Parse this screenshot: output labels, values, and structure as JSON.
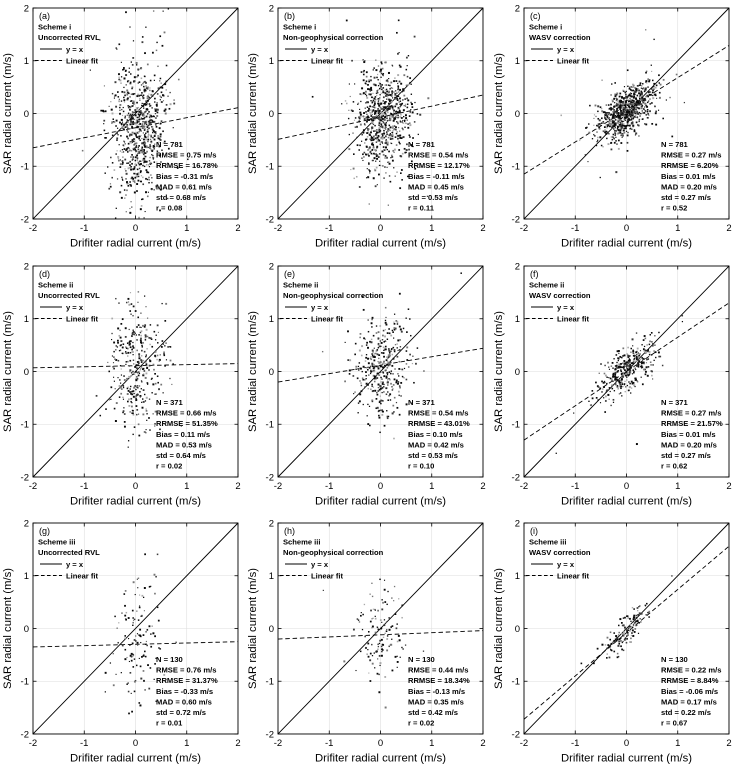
{
  "figure": {
    "background": "#ffffff",
    "axis_color": "#000000",
    "grid_color": "#dedede",
    "text_color": "#000000",
    "xlabel": "Drifiter radial current (m/s)",
    "ylabel": "SAR radial current (m/s)",
    "xlim": [
      -2,
      2
    ],
    "ylim": [
      -2,
      2
    ],
    "ticks": [
      -2,
      -1,
      0,
      1,
      2
    ],
    "legend": {
      "identity_label": "y = x",
      "fit_label": "Linear fit",
      "identity_style": "solid",
      "fit_style": "dashed",
      "position": "top-left-inside"
    }
  },
  "chart_data": [
    {
      "type": "scatter",
      "panel": "(a)",
      "scheme": "Scheme i",
      "correction": "Uncorrected RVL",
      "n_points": 781,
      "fit_line": {
        "slope": 0.19,
        "intercept": -0.27
      },
      "cloud": {
        "cx": 0.05,
        "cy": -0.3,
        "sx": 0.27,
        "sy": 0.66,
        "r": 0.08
      },
      "stats": [
        "N = 781",
        "RMSE = 0.75 m/s",
        "RRMSE = 16.78%",
        "Bias = -0.31 m/s",
        "MAD = 0.61 m/s",
        "std = 0.68 m/s",
        "r = 0.08"
      ]
    },
    {
      "type": "scatter",
      "panel": "(b)",
      "scheme": "Scheme i",
      "correction": "Non-geophysical correction",
      "n_points": 781,
      "fit_line": {
        "slope": 0.21,
        "intercept": -0.07
      },
      "cloud": {
        "cx": 0.05,
        "cy": -0.1,
        "sx": 0.27,
        "sy": 0.52,
        "r": 0.11
      },
      "stats": [
        "N = 781",
        "RMSE = 0.54 m/s",
        "RRMSE = 12.17%",
        "Bias = -0.11 m/s",
        "MAD = 0.45 m/s",
        "std = 0.53 m/s",
        "r = 0.11"
      ]
    },
    {
      "type": "scatter",
      "panel": "(c)",
      "scheme": "Scheme i",
      "correction": "WASV correction",
      "n_points": 781,
      "fit_line": {
        "slope": 0.61,
        "intercept": 0.07
      },
      "cloud": {
        "cx": 0.0,
        "cy": 0.05,
        "sx": 0.27,
        "sy": 0.27,
        "r": 0.52
      },
      "stats": [
        "N = 781",
        "RMSE = 0.27 m/s",
        "RRMSE = 6.20%",
        "Bias = 0.01 m/s",
        "MAD = 0.20 m/s",
        "std = 0.27 m/s",
        "r = 0.52"
      ]
    },
    {
      "type": "scatter",
      "panel": "(d)",
      "scheme": "Scheme ii",
      "correction": "Uncorrected RVL",
      "n_points": 371,
      "fit_line": {
        "slope": 0.02,
        "intercept": 0.11
      },
      "cloud": {
        "cx": 0.05,
        "cy": 0.1,
        "sx": 0.28,
        "sy": 0.62,
        "r": 0.02
      },
      "stats": [
        "N = 371",
        "RMSE = 0.66 m/s",
        "RRMSE = 51.35%",
        "Bias = 0.11 m/s",
        "MAD = 0.53 m/s",
        "std = 0.64 m/s",
        "r = 0.02"
      ]
    },
    {
      "type": "scatter",
      "panel": "(e)",
      "scheme": "Scheme ii",
      "correction": "Non-geophysical correction",
      "n_points": 371,
      "fit_line": {
        "slope": 0.16,
        "intercept": 0.12
      },
      "cloud": {
        "cx": 0.05,
        "cy": 0.08,
        "sx": 0.28,
        "sy": 0.52,
        "r": 0.1
      },
      "stats": [
        "N = 371",
        "RMSE = 0.54 m/s",
        "RRMSE = 43.01%",
        "Bias = 0.10 m/s",
        "MAD = 0.42 m/s",
        "std = 0.53 m/s",
        "r = 0.10"
      ]
    },
    {
      "type": "scatter",
      "panel": "(f)",
      "scheme": "Scheme ii",
      "correction": "WASV correction",
      "n_points": 371,
      "fit_line": {
        "slope": 0.65,
        "intercept": 0.0
      },
      "cloud": {
        "cx": 0.0,
        "cy": 0.02,
        "sx": 0.27,
        "sy": 0.27,
        "r": 0.62
      },
      "stats": [
        "N = 371",
        "RMSE = 0.27 m/s",
        "RRMSE = 21.57%",
        "Bias = 0.01 m/s",
        "MAD = 0.20 m/s",
        "std = 0.27 m/s",
        "r = 0.62"
      ]
    },
    {
      "type": "scatter",
      "panel": "(g)",
      "scheme": "Scheme iii",
      "correction": "Uncorrected RVL",
      "n_points": 130,
      "fit_line": {
        "slope": 0.025,
        "intercept": -0.3
      },
      "cloud": {
        "cx": 0.0,
        "cy": -0.28,
        "sx": 0.22,
        "sy": 0.7,
        "r": 0.01
      },
      "stats": [
        "N = 130",
        "RMSE = 0.76 m/s",
        "RRMSE = 31.37%",
        "Bias = -0.33 m/s",
        "MAD = 0.60 m/s",
        "std = 0.72 m/s",
        "r = 0.01"
      ]
    },
    {
      "type": "scatter",
      "panel": "(h)",
      "scheme": "Scheme iii",
      "correction": "Non-geophysical correction",
      "n_points": 130,
      "fit_line": {
        "slope": 0.04,
        "intercept": -0.12
      },
      "cloud": {
        "cx": 0.0,
        "cy": -0.1,
        "sx": 0.22,
        "sy": 0.4,
        "r": 0.02
      },
      "stats": [
        "N = 130",
        "RMSE = 0.44 m/s",
        "RRMSE = 18.34%",
        "Bias = -0.13 m/s",
        "MAD = 0.35 m/s",
        "std = 0.42 m/s",
        "r = 0.02"
      ]
    },
    {
      "type": "scatter",
      "panel": "(i)",
      "scheme": "Scheme iii",
      "correction": "WASV correction",
      "n_points": 130,
      "fit_line": {
        "slope": 0.82,
        "intercept": -0.08
      },
      "cloud": {
        "cx": 0.0,
        "cy": -0.03,
        "sx": 0.22,
        "sy": 0.24,
        "r": 0.67
      },
      "stats": [
        "N = 130",
        "RMSE = 0.22 m/s",
        "RRMSE = 8.84%",
        "Bias = -0.06 m/s",
        "MAD = 0.17 m/s",
        "std = 0.22 m/s",
        "r = 0.67"
      ]
    }
  ]
}
